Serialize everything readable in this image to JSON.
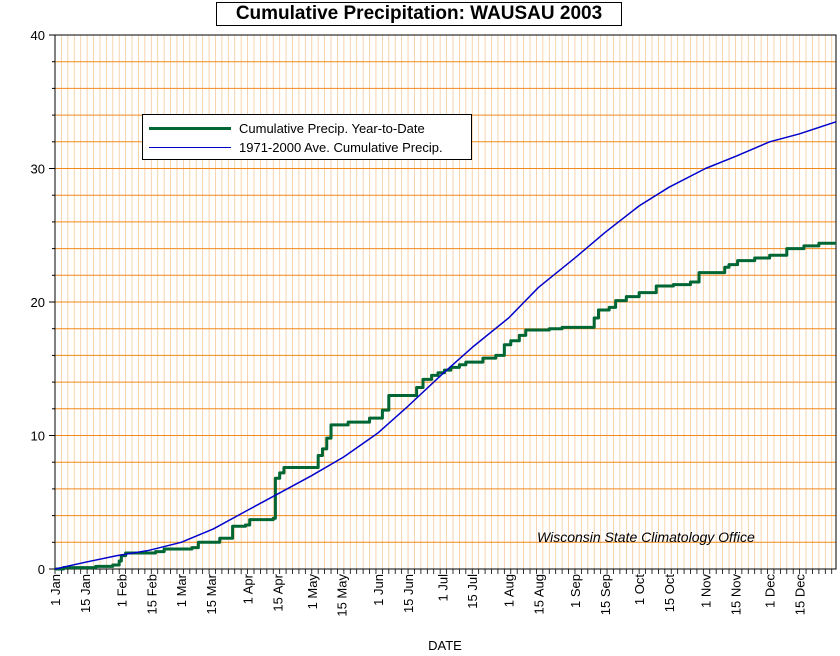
{
  "chart_data": {
    "type": "line",
    "title": "Cumulative Precipitation: WAUSAU 2003",
    "xlabel": "DATE",
    "ylabel": "",
    "ylim": [
      0,
      40
    ],
    "yticks": [
      0,
      10,
      20,
      30,
      40
    ],
    "xlim": [
      1,
      366
    ],
    "x_tick_labels": [
      {
        "day": 1,
        "label": "1 Jan"
      },
      {
        "day": 15,
        "label": "15 Jan"
      },
      {
        "day": 32,
        "label": "1 Feb"
      },
      {
        "day": 46,
        "label": "15 Feb"
      },
      {
        "day": 60,
        "label": "1 Mar"
      },
      {
        "day": 74,
        "label": "15 Mar"
      },
      {
        "day": 91,
        "label": "1 Apr"
      },
      {
        "day": 105,
        "label": "15 Apr"
      },
      {
        "day": 121,
        "label": "1 May"
      },
      {
        "day": 135,
        "label": "15 May"
      },
      {
        "day": 152,
        "label": "1 Jun"
      },
      {
        "day": 166,
        "label": "15 Jun"
      },
      {
        "day": 182,
        "label": "1 Jul"
      },
      {
        "day": 196,
        "label": "15 Jul"
      },
      {
        "day": 213,
        "label": "1 Aug"
      },
      {
        "day": 227,
        "label": "15 Aug"
      },
      {
        "day": 244,
        "label": "1 Sep"
      },
      {
        "day": 258,
        "label": "15 Sep"
      },
      {
        "day": 274,
        "label": "1 Oct"
      },
      {
        "day": 288,
        "label": "15 Oct"
      },
      {
        "day": 305,
        "label": "1 Nov"
      },
      {
        "day": 319,
        "label": "15 Nov"
      },
      {
        "day": 335,
        "label": "1 Dec"
      },
      {
        "day": 349,
        "label": "15 Dec"
      }
    ],
    "grid": true,
    "legend_position": "upper-left",
    "annotation": "Wisconsin State Climatology Office",
    "series": [
      {
        "name": "Cumulative Precip. Year-to-Date",
        "color": "#006633",
        "step": true,
        "points": [
          [
            1,
            0.0
          ],
          [
            5,
            0.1
          ],
          [
            20,
            0.2
          ],
          [
            28,
            0.3
          ],
          [
            31,
            0.6
          ],
          [
            32,
            1.0
          ],
          [
            34,
            1.2
          ],
          [
            48,
            1.3
          ],
          [
            52,
            1.5
          ],
          [
            65,
            1.6
          ],
          [
            68,
            2.0
          ],
          [
            78,
            2.3
          ],
          [
            84,
            3.2
          ],
          [
            90,
            3.3
          ],
          [
            92,
            3.7
          ],
          [
            103,
            3.8
          ],
          [
            104,
            6.8
          ],
          [
            106,
            7.2
          ],
          [
            108,
            7.6
          ],
          [
            124,
            8.5
          ],
          [
            126,
            9.0
          ],
          [
            128,
            9.8
          ],
          [
            130,
            10.8
          ],
          [
            138,
            11.0
          ],
          [
            148,
            11.3
          ],
          [
            154,
            11.9
          ],
          [
            157,
            13.0
          ],
          [
            170,
            13.6
          ],
          [
            173,
            14.2
          ],
          [
            177,
            14.5
          ],
          [
            180,
            14.7
          ],
          [
            183,
            14.9
          ],
          [
            186,
            15.1
          ],
          [
            190,
            15.3
          ],
          [
            193,
            15.5
          ],
          [
            201,
            15.8
          ],
          [
            207,
            16.0
          ],
          [
            211,
            16.8
          ],
          [
            214,
            17.1
          ],
          [
            218,
            17.5
          ],
          [
            221,
            17.9
          ],
          [
            232,
            18.0
          ],
          [
            238,
            18.1
          ],
          [
            253,
            18.8
          ],
          [
            255,
            19.4
          ],
          [
            260,
            19.6
          ],
          [
            263,
            20.1
          ],
          [
            268,
            20.4
          ],
          [
            274,
            20.7
          ],
          [
            282,
            21.2
          ],
          [
            290,
            21.3
          ],
          [
            298,
            21.5
          ],
          [
            302,
            22.2
          ],
          [
            314,
            22.6
          ],
          [
            316,
            22.8
          ],
          [
            320,
            23.1
          ],
          [
            328,
            23.3
          ],
          [
            335,
            23.5
          ],
          [
            343,
            24.0
          ],
          [
            351,
            24.2
          ],
          [
            358,
            24.4
          ],
          [
            366,
            24.4
          ]
        ]
      },
      {
        "name": "1971-2000 Ave. Cumulative Precip.",
        "color": "#0000cc",
        "step": false,
        "points": [
          [
            1,
            0.0
          ],
          [
            15,
            0.5
          ],
          [
            30,
            1.0
          ],
          [
            45,
            1.4
          ],
          [
            60,
            2.0
          ],
          [
            75,
            3.0
          ],
          [
            91,
            4.4
          ],
          [
            106,
            5.7
          ],
          [
            121,
            7.0
          ],
          [
            136,
            8.4
          ],
          [
            152,
            10.2
          ],
          [
            166,
            12.2
          ],
          [
            182,
            14.6
          ],
          [
            196,
            16.6
          ],
          [
            213,
            18.8
          ],
          [
            227,
            21.1
          ],
          [
            244,
            23.3
          ],
          [
            258,
            25.2
          ],
          [
            274,
            27.2
          ],
          [
            288,
            28.6
          ],
          [
            305,
            30.0
          ],
          [
            319,
            30.9
          ],
          [
            335,
            32.0
          ],
          [
            349,
            32.6
          ],
          [
            366,
            33.5
          ]
        ]
      }
    ]
  }
}
